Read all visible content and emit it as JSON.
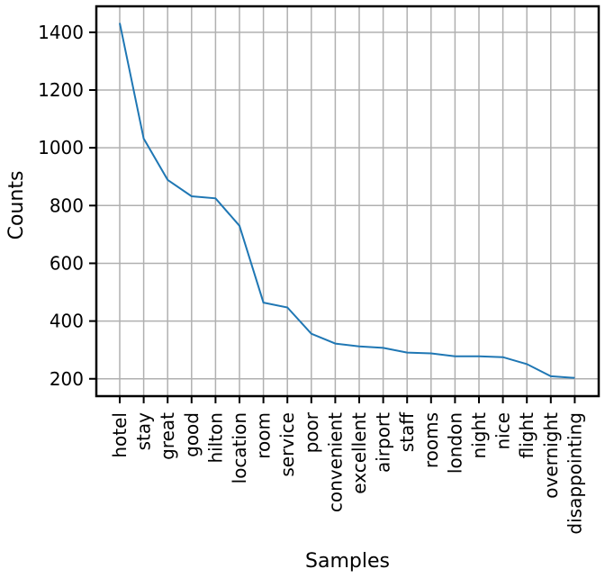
{
  "chart_data": {
    "type": "line",
    "title": "",
    "xlabel": "Samples",
    "ylabel": "Counts",
    "categories": [
      "hotel",
      "stay",
      "great",
      "good",
      "hilton",
      "location",
      "room",
      "service",
      "poor",
      "convenient",
      "excellent",
      "airport",
      "staff",
      "rooms",
      "london",
      "night",
      "nice",
      "flight",
      "overnight",
      "disappointing"
    ],
    "series": [
      {
        "values": [
          1432,
          1032,
          889,
          832,
          825,
          730,
          464,
          447,
          356,
          322,
          312,
          307,
          291,
          288,
          278,
          278,
          275,
          251,
          209,
          203
        ]
      }
    ],
    "yticks": [
      200,
      400,
      600,
      800,
      1000,
      1200,
      1400
    ],
    "ylim": [
      140,
      1490
    ],
    "grid": true,
    "line_color": "#1f77b4"
  }
}
